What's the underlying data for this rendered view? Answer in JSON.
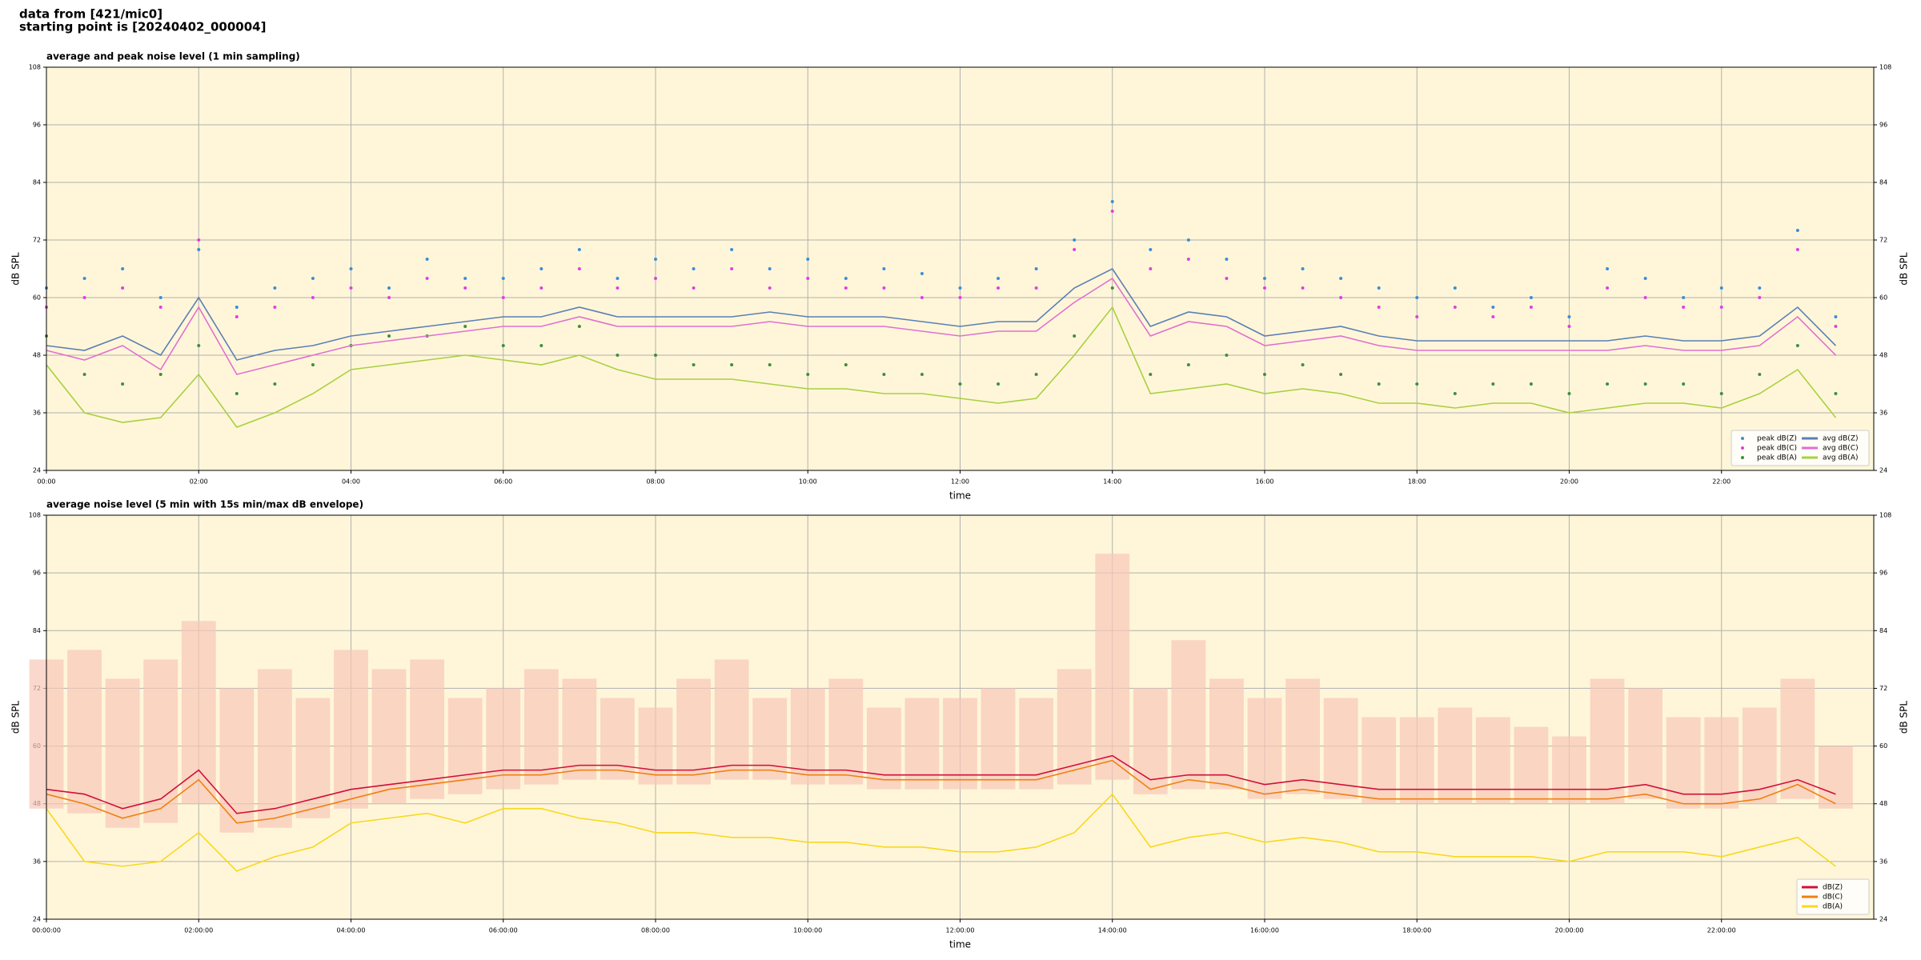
{
  "header": {
    "source": "data from [421/mic0]",
    "start": "starting point is [20240402_000004]"
  },
  "chart_data": [
    {
      "type": "line",
      "title": "average and peak noise level (1 min sampling)",
      "x_label": "time",
      "y_label": "dB SPL",
      "xlim": [
        0,
        24
      ],
      "ylim": [
        24,
        108
      ],
      "yticks": [
        24,
        36,
        48,
        60,
        72,
        84,
        96,
        108
      ],
      "xticks": [
        {
          "value": 0,
          "label": "00:00"
        },
        {
          "value": 2,
          "label": "02:00"
        },
        {
          "value": 4,
          "label": "04:00"
        },
        {
          "value": 6,
          "label": "06:00"
        },
        {
          "value": 8,
          "label": "08:00"
        },
        {
          "value": 10,
          "label": "10:00"
        },
        {
          "value": 12,
          "label": "12:00"
        },
        {
          "value": 14,
          "label": "14:00"
        },
        {
          "value": 16,
          "label": "16:00"
        },
        {
          "value": 18,
          "label": "18:00"
        },
        {
          "value": 20,
          "label": "20:00"
        },
        {
          "value": 22,
          "label": "22:00"
        }
      ],
      "grid": true,
      "legend": "lower right",
      "background": "#fff6d9",
      "x": [
        0,
        0.5,
        1,
        1.5,
        2,
        2.5,
        3,
        3.5,
        4,
        4.5,
        5,
        5.5,
        6,
        6.5,
        7,
        7.5,
        8,
        8.5,
        9,
        9.5,
        10,
        10.5,
        11,
        11.5,
        12,
        12.5,
        13,
        13.5,
        14,
        14.5,
        15,
        15.5,
        16,
        16.5,
        17,
        17.5,
        18,
        18.5,
        19,
        19.5,
        20,
        20.5,
        21,
        21.5,
        22,
        22.5,
        23,
        23.5
      ],
      "series": [
        {
          "name": "peak dB(Z)",
          "style": "dots",
          "color": "#3a8fd8",
          "values": [
            62,
            64,
            66,
            60,
            70,
            58,
            62,
            64,
            66,
            62,
            68,
            64,
            64,
            66,
            70,
            64,
            68,
            66,
            70,
            66,
            68,
            64,
            66,
            65,
            62,
            64,
            66,
            72,
            80,
            70,
            72,
            68,
            64,
            66,
            64,
            62,
            60,
            62,
            58,
            60,
            56,
            66,
            64,
            60,
            62,
            62,
            74,
            56
          ]
        },
        {
          "name": "peak dB(C)",
          "style": "dots",
          "color": "#e040e0",
          "values": [
            58,
            60,
            62,
            58,
            72,
            56,
            58,
            60,
            62,
            60,
            64,
            62,
            60,
            62,
            66,
            62,
            64,
            62,
            66,
            62,
            64,
            62,
            62,
            60,
            60,
            62,
            62,
            70,
            78,
            66,
            68,
            64,
            62,
            62,
            60,
            58,
            56,
            58,
            56,
            58,
            54,
            62,
            60,
            58,
            58,
            60,
            70,
            54
          ]
        },
        {
          "name": "peak dB(A)",
          "style": "dots",
          "color": "#3f8f3f",
          "values": [
            52,
            44,
            42,
            44,
            50,
            40,
            42,
            46,
            50,
            52,
            52,
            54,
            50,
            50,
            54,
            48,
            48,
            46,
            46,
            46,
            44,
            46,
            44,
            44,
            42,
            42,
            44,
            52,
            62,
            44,
            46,
            48,
            44,
            46,
            44,
            42,
            42,
            40,
            42,
            42,
            40,
            42,
            42,
            42,
            40,
            44,
            50,
            40
          ]
        },
        {
          "name": "avg dB(Z)",
          "style": "line",
          "color": "#5b7fb5",
          "values": [
            50,
            49,
            52,
            48,
            60,
            47,
            49,
            50,
            52,
            53,
            54,
            55,
            56,
            56,
            58,
            56,
            56,
            56,
            56,
            57,
            56,
            56,
            56,
            55,
            54,
            55,
            55,
            62,
            66,
            54,
            57,
            56,
            52,
            53,
            54,
            52,
            51,
            51,
            51,
            51,
            51,
            51,
            52,
            51,
            51,
            52,
            58,
            50
          ]
        },
        {
          "name": "avg dB(C)",
          "style": "line",
          "color": "#e070d0",
          "values": [
            49,
            47,
            50,
            45,
            58,
            44,
            46,
            48,
            50,
            51,
            52,
            53,
            54,
            54,
            56,
            54,
            54,
            54,
            54,
            55,
            54,
            54,
            54,
            53,
            52,
            53,
            53,
            59,
            64,
            52,
            55,
            54,
            50,
            51,
            52,
            50,
            49,
            49,
            49,
            49,
            49,
            49,
            50,
            49,
            49,
            50,
            56,
            48
          ]
        },
        {
          "name": "avg dB(A)",
          "style": "line",
          "color": "#a8d040",
          "values": [
            46,
            36,
            34,
            35,
            44,
            33,
            36,
            40,
            45,
            46,
            47,
            48,
            47,
            46,
            48,
            45,
            43,
            43,
            43,
            42,
            41,
            41,
            40,
            40,
            39,
            38,
            39,
            48,
            58,
            40,
            41,
            42,
            40,
            41,
            40,
            38,
            38,
            37,
            38,
            38,
            36,
            37,
            38,
            38,
            37,
            40,
            45,
            35
          ]
        }
      ]
    },
    {
      "type": "line",
      "title": "average noise level (5 min with 15s min/max dB envelope)",
      "x_label": "time",
      "y_label": "dB SPL",
      "xlim": [
        0,
        24
      ],
      "ylim": [
        24,
        108
      ],
      "yticks": [
        24,
        36,
        48,
        60,
        72,
        84,
        96,
        108
      ],
      "xticks": [
        {
          "value": 0,
          "label": "00:00:00"
        },
        {
          "value": 2,
          "label": "02:00:00"
        },
        {
          "value": 4,
          "label": "04:00:00"
        },
        {
          "value": 6,
          "label": "06:00:00"
        },
        {
          "value": 8,
          "label": "08:00:00"
        },
        {
          "value": 10,
          "label": "10:00:00"
        },
        {
          "value": 12,
          "label": "12:00:00"
        },
        {
          "value": 14,
          "label": "14:00:00"
        },
        {
          "value": 16,
          "label": "16:00:00"
        },
        {
          "value": 18,
          "label": "18:00:00"
        },
        {
          "value": 20,
          "label": "20:00:00"
        },
        {
          "value": 22,
          "label": "22:00:00"
        }
      ],
      "grid": true,
      "legend": "lower right",
      "background": "#fff6d9",
      "x": [
        0,
        0.5,
        1,
        1.5,
        2,
        2.5,
        3,
        3.5,
        4,
        4.5,
        5,
        5.5,
        6,
        6.5,
        7,
        7.5,
        8,
        8.5,
        9,
        9.5,
        10,
        10.5,
        11,
        11.5,
        12,
        12.5,
        13,
        13.5,
        14,
        14.5,
        15,
        15.5,
        16,
        16.5,
        17,
        17.5,
        18,
        18.5,
        19,
        19.5,
        20,
        20.5,
        21,
        21.5,
        22,
        22.5,
        23,
        23.5
      ],
      "envelope": {
        "color": "#f8c8b8",
        "min": [
          47,
          46,
          43,
          44,
          48,
          42,
          43,
          45,
          47,
          48,
          49,
          50,
          51,
          52,
          53,
          53,
          52,
          52,
          53,
          53,
          52,
          52,
          51,
          51,
          51,
          51,
          51,
          52,
          53,
          50,
          51,
          51,
          49,
          50,
          49,
          48,
          48,
          48,
          48,
          48,
          48,
          48,
          49,
          47,
          47,
          48,
          49,
          47
        ],
        "max": [
          78,
          80,
          74,
          78,
          86,
          72,
          76,
          70,
          80,
          76,
          78,
          70,
          72,
          76,
          74,
          70,
          68,
          74,
          78,
          70,
          72,
          74,
          68,
          70,
          70,
          72,
          70,
          76,
          100,
          72,
          82,
          74,
          70,
          74,
          70,
          66,
          66,
          68,
          66,
          64,
          62,
          74,
          72,
          66,
          66,
          68,
          74,
          60
        ]
      },
      "series": [
        {
          "name": "dB(Z)",
          "style": "line",
          "color": "#d0103a",
          "values": [
            51,
            50,
            47,
            49,
            55,
            46,
            47,
            49,
            51,
            52,
            53,
            54,
            55,
            55,
            56,
            56,
            55,
            55,
            56,
            56,
            55,
            55,
            54,
            54,
            54,
            54,
            54,
            56,
            58,
            53,
            54,
            54,
            52,
            53,
            52,
            51,
            51,
            51,
            51,
            51,
            51,
            51,
            52,
            50,
            50,
            51,
            53,
            50
          ]
        },
        {
          "name": "dB(C)",
          "style": "line",
          "color": "#f08010",
          "values": [
            50,
            48,
            45,
            47,
            53,
            44,
            45,
            47,
            49,
            51,
            52,
            53,
            54,
            54,
            55,
            55,
            54,
            54,
            55,
            55,
            54,
            54,
            53,
            53,
            53,
            53,
            53,
            55,
            57,
            51,
            53,
            52,
            50,
            51,
            50,
            49,
            49,
            49,
            49,
            49,
            49,
            49,
            50,
            48,
            48,
            49,
            52,
            48
          ]
        },
        {
          "name": "dB(A)",
          "style": "line",
          "color": "#f8d820",
          "values": [
            47,
            36,
            35,
            36,
            42,
            34,
            37,
            39,
            44,
            45,
            46,
            44,
            47,
            47,
            45,
            44,
            42,
            42,
            41,
            41,
            40,
            40,
            39,
            39,
            38,
            38,
            39,
            42,
            50,
            39,
            41,
            42,
            40,
            41,
            40,
            38,
            38,
            37,
            37,
            37,
            36,
            38,
            38,
            38,
            37,
            39,
            41,
            35
          ]
        }
      ]
    }
  ]
}
